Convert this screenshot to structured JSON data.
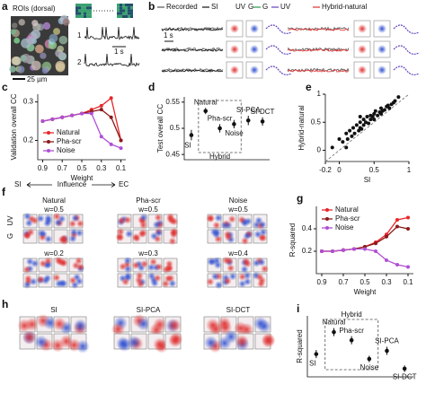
{
  "panel_labels": [
    "a",
    "b",
    "c",
    "d",
    "e",
    "f",
    "g",
    "h",
    "i"
  ],
  "panel_a": {
    "title": "ROIs (dorsal)",
    "roi_labels": [
      "1",
      "2"
    ],
    "time_scale": "1 s",
    "space_scale": "25 µm"
  },
  "panel_b": {
    "legend": [
      "Recorded",
      "SI",
      "UV",
      "G",
      "G",
      "UV",
      "Hybrid-natural"
    ],
    "time_scale": "1 s"
  },
  "panel_c_axis": {
    "left": "SI",
    "middle": "Influence",
    "right": "EC"
  },
  "panel_f": {
    "columns": [
      "Natural",
      "Pha-scr",
      "Noise"
    ],
    "weights": [
      "w=0.5",
      "w=0.5",
      "w=0.5",
      "w=0.2",
      "w=0.3",
      "w=0.4"
    ],
    "channels": [
      "UV",
      "G"
    ]
  },
  "panel_h": {
    "columns": [
      "SI",
      "SI-PCA",
      "SI-DCT"
    ]
  },
  "chart_data": [
    {
      "type": "line",
      "ylabel": "Validation overall CC",
      "xlabel": "Weight",
      "x": [
        0.9,
        0.8,
        0.7,
        0.6,
        0.5,
        0.4,
        0.3,
        0.2,
        0.1
      ],
      "xlim": [
        0.95,
        0.05
      ],
      "xticks": [
        0.9,
        0.7,
        0.5,
        0.3,
        0.1
      ],
      "ylim": [
        0.15,
        0.32
      ],
      "yticks": [
        0.2,
        0.3
      ],
      "legend": "lower left",
      "series": [
        {
          "name": "Natural",
          "color": "#e8262b",
          "values": [
            0.25,
            0.255,
            0.26,
            0.265,
            0.27,
            0.28,
            0.29,
            0.31,
            0.2
          ]
        },
        {
          "name": "Pha-scr",
          "color": "#8b1a1a",
          "values": [
            0.25,
            0.255,
            0.26,
            0.265,
            0.27,
            0.275,
            0.28,
            0.26,
            0.2
          ]
        },
        {
          "name": "Noise",
          "color": "#b04fd6",
          "values": [
            0.25,
            0.255,
            0.26,
            0.265,
            0.27,
            0.27,
            0.21,
            0.19,
            0.18
          ]
        }
      ]
    },
    {
      "type": "errorbar",
      "ylabel": "Test overall CC",
      "categories": [
        "SI",
        "Natural",
        "Pha-scr",
        "Noise",
        "SI-PCA",
        "SI-DCT"
      ],
      "values": [
        0.487,
        0.533,
        0.5,
        0.508,
        0.515,
        0.513
      ],
      "errors": [
        0.01,
        0.006,
        0.008,
        0.008,
        0.009,
        0.008
      ],
      "ylim": [
        0.44,
        0.56
      ],
      "yticks": [
        0.45,
        0.5,
        0.55
      ],
      "group_label": "Hybrid",
      "color": "#111"
    },
    {
      "type": "scatter",
      "xlabel": "SI",
      "ylabel": "Hybrid-natural",
      "xlim": [
        -0.2,
        1
      ],
      "ylim": [
        -0.2,
        1
      ],
      "xticks": [
        -0.2,
        0,
        0.5,
        1
      ],
      "yticks": [
        0,
        0.5,
        1
      ],
      "color": "#111",
      "x": [
        -0.1,
        0,
        0.05,
        0.1,
        0.12,
        0.15,
        0.18,
        0.2,
        0.22,
        0.25,
        0.28,
        0.3,
        0.3,
        0.32,
        0.35,
        0.35,
        0.38,
        0.4,
        0.42,
        0.45,
        0.45,
        0.48,
        0.5,
        0.5,
        0.52,
        0.55,
        0.58,
        0.6,
        0.6,
        0.62,
        0.65,
        0.68,
        0.7,
        0.72,
        0.75,
        0.78,
        0.8,
        0.85,
        0.3,
        0.1
      ],
      "values": [
        0.05,
        0.2,
        0.15,
        0.3,
        0.2,
        0.35,
        0.25,
        0.4,
        0.3,
        0.45,
        0.35,
        0.5,
        0.4,
        0.38,
        0.55,
        0.45,
        0.5,
        0.6,
        0.48,
        0.55,
        0.62,
        0.6,
        0.65,
        0.55,
        0.7,
        0.62,
        0.68,
        0.75,
        0.65,
        0.7,
        0.72,
        0.78,
        0.8,
        0.75,
        0.82,
        0.85,
        0.88,
        0.95,
        0.6,
        0.05
      ]
    },
    {
      "type": "line",
      "ylabel": "R-squared",
      "xlabel": "Weight",
      "x": [
        0.9,
        0.8,
        0.7,
        0.6,
        0.5,
        0.4,
        0.3,
        0.2,
        0.1
      ],
      "xlim": [
        0.95,
        0.05
      ],
      "xticks": [
        0.9,
        0.7,
        0.5,
        0.3,
        0.1
      ],
      "ylim": [
        0,
        0.6
      ],
      "yticks": [
        0.2,
        0.4
      ],
      "legend": "upper left",
      "series": [
        {
          "name": "Natural",
          "color": "#e8262b",
          "values": [
            0.2,
            0.2,
            0.21,
            0.22,
            0.24,
            0.28,
            0.35,
            0.48,
            0.5
          ]
        },
        {
          "name": "Pha-scr",
          "color": "#8b1a1a",
          "values": [
            0.2,
            0.2,
            0.21,
            0.22,
            0.24,
            0.27,
            0.33,
            0.42,
            0.4
          ]
        },
        {
          "name": "Noise",
          "color": "#b04fd6",
          "values": [
            0.2,
            0.2,
            0.21,
            0.22,
            0.22,
            0.2,
            0.12,
            0.08,
            0.06
          ]
        }
      ]
    },
    {
      "type": "errorbar",
      "ylabel": "R-squared",
      "categories": [
        "SI",
        "Natural",
        "Pha-scr",
        "Noise",
        "SI-PCA",
        "SI-DCT"
      ],
      "values": [
        0.28,
        0.55,
        0.45,
        0.22,
        0.32,
        0.1
      ],
      "errors": [
        0.05,
        0.05,
        0.05,
        0.04,
        0.05,
        0.04
      ],
      "ylim": [
        0,
        0.75
      ],
      "group_label": "Hybrid",
      "color": "#111"
    }
  ]
}
